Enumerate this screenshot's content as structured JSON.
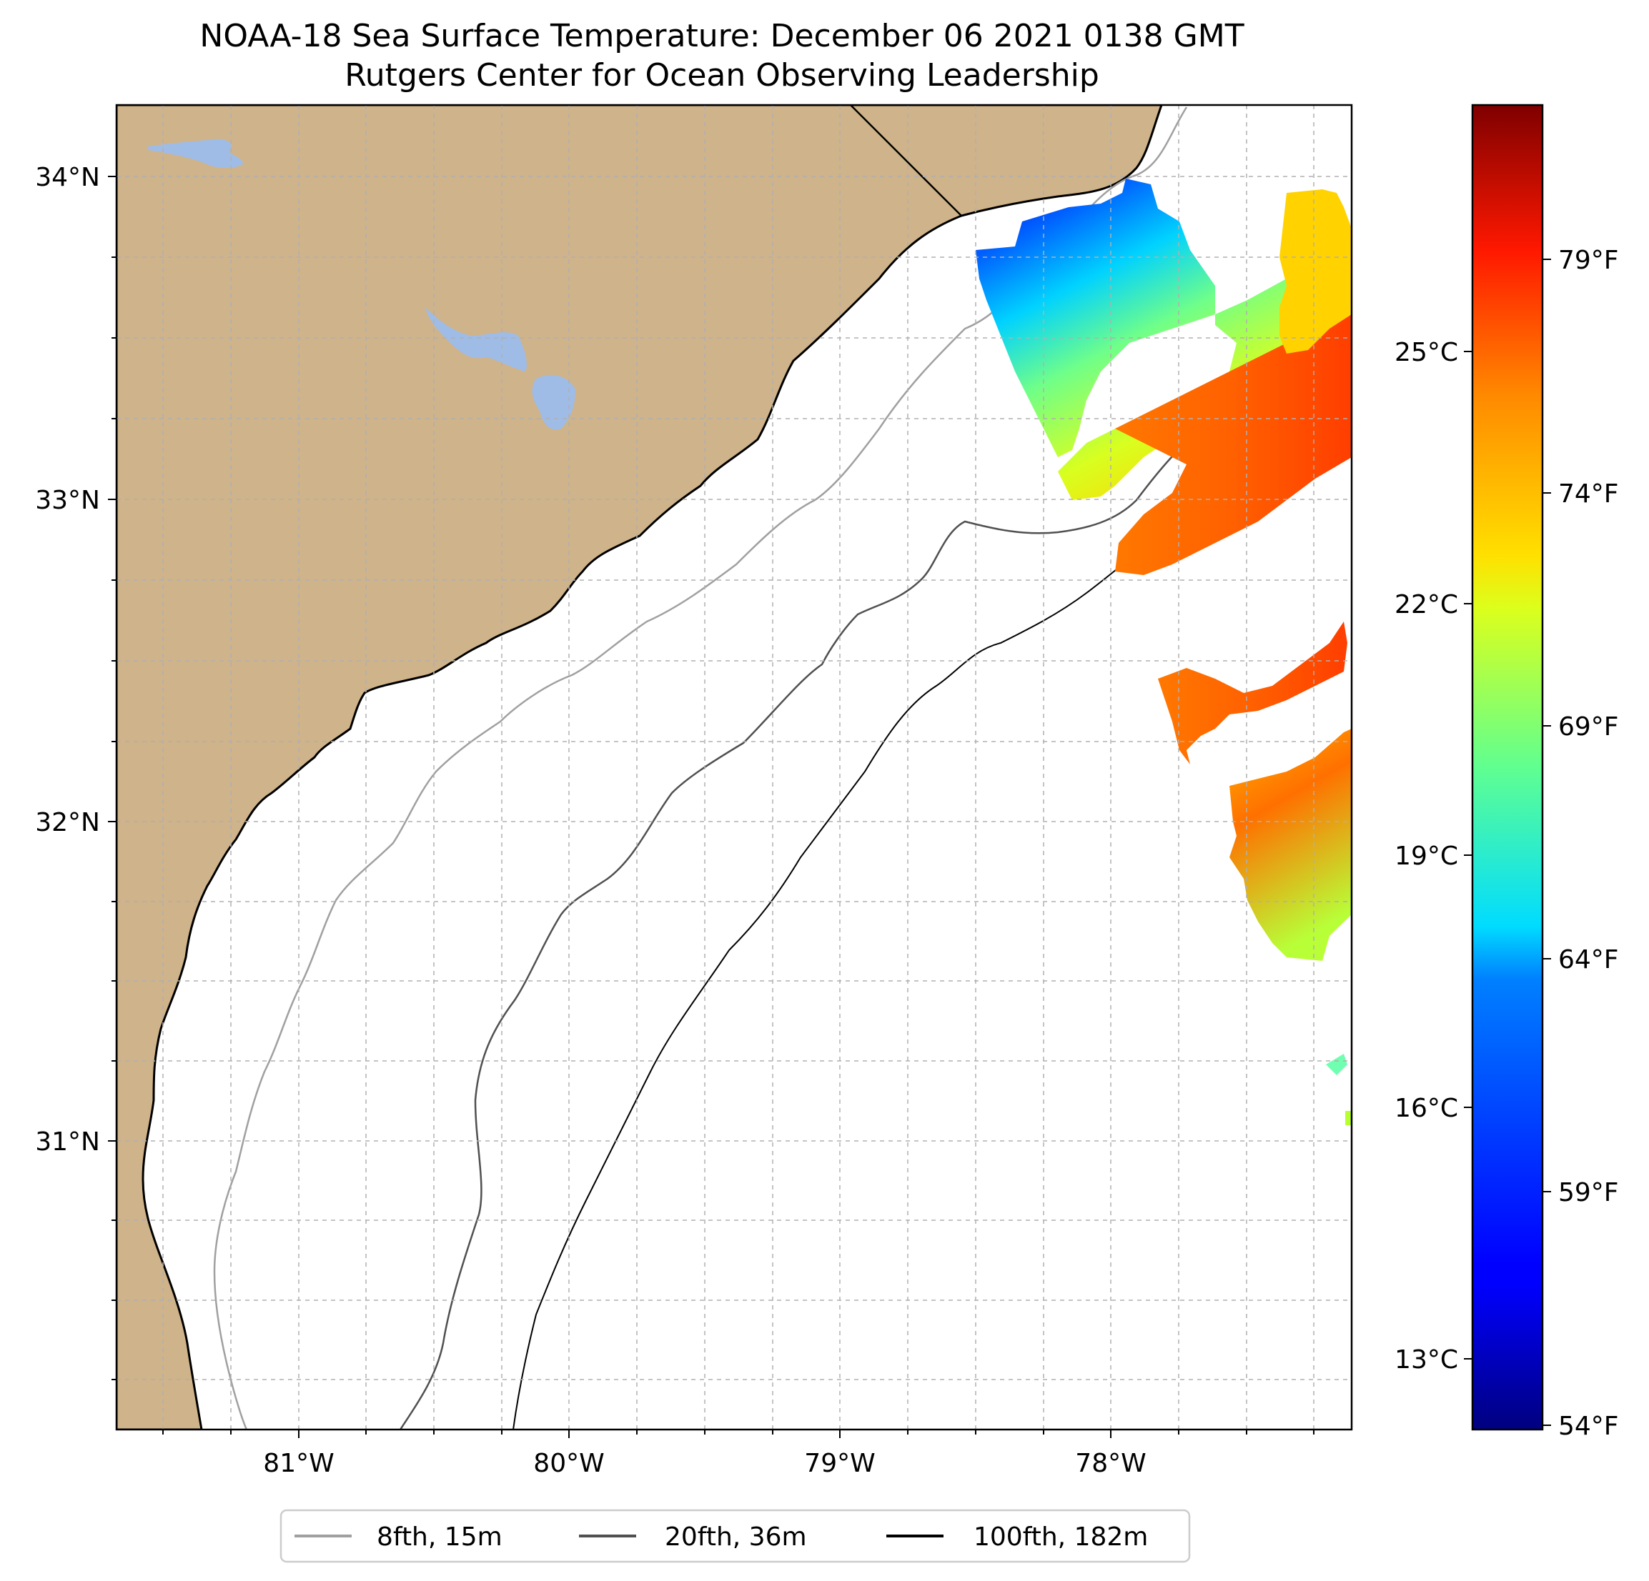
{
  "header": {
    "title": "NOAA-18 Sea Surface Temperature: December 06 2021 0138 GMT",
    "subtitle": "Rutgers Center for Ocean Observing Leadership"
  },
  "map": {
    "lon_range": [
      -81.68,
      -77.1
    ],
    "lat_range": [
      30.18,
      34.22
    ],
    "lat_labels": [
      "34°N",
      "33°N",
      "32°N",
      "31°N"
    ],
    "lon_labels": [
      "81°W",
      "80°W",
      "79°W",
      "78°W"
    ],
    "gridlines": true,
    "land_color": "#cfb38a",
    "water_color": "#9fbce6",
    "ocean_color": "#ffffff"
  },
  "colorbar": {
    "colormap": "jet",
    "celsius_labels": [
      "25°C",
      "22°C",
      "19°C",
      "16°C",
      "13°C"
    ],
    "fahrenheit_labels": [
      "79°F",
      "74°F",
      "69°F",
      "64°F",
      "59°F",
      "54°F"
    ]
  },
  "legend": {
    "position": "bottom-center",
    "items": [
      {
        "label": "8fth, 15m",
        "color": "#a0a0a0"
      },
      {
        "label": "20fth, 36m",
        "color": "#505050"
      },
      {
        "label": "100fth, 182m",
        "color": "#000000"
      }
    ]
  }
}
